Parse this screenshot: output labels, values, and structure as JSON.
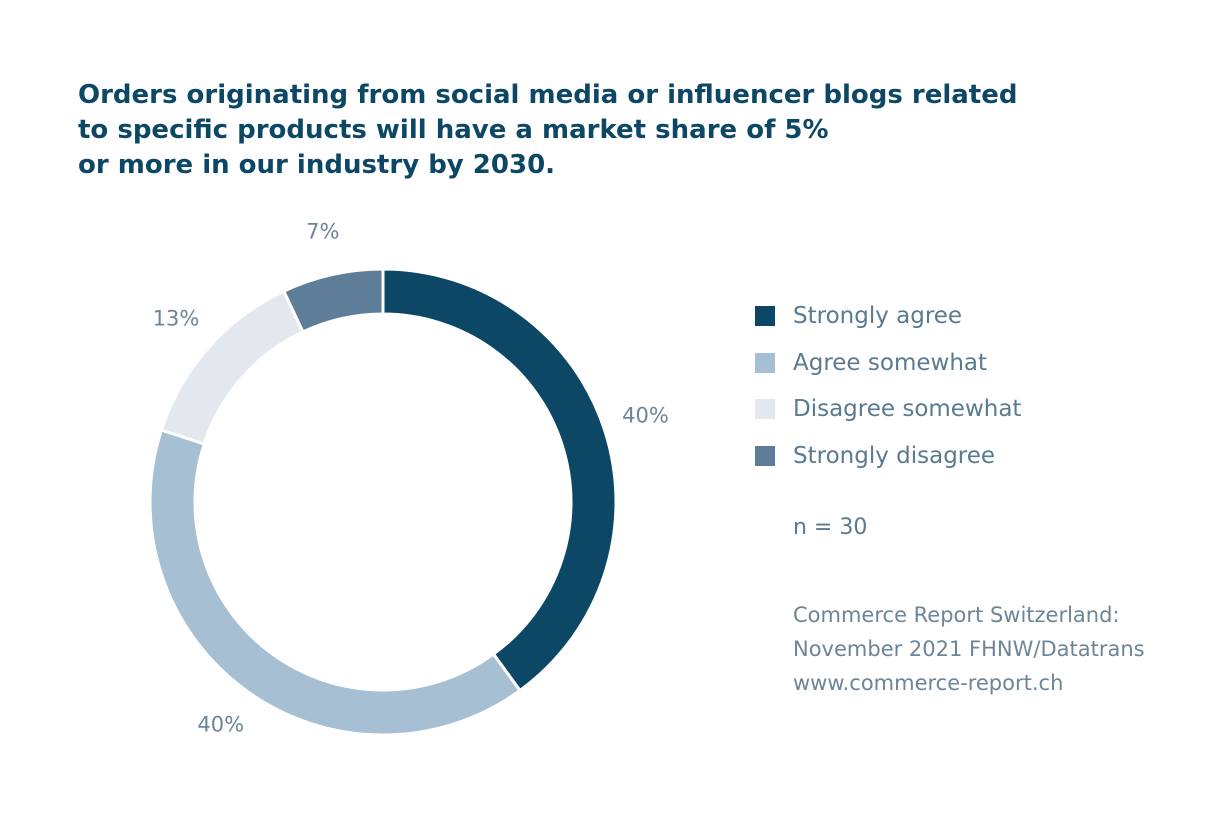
{
  "title_lines": [
    "Orders originating from social media or influencer blogs related",
    "to specific products will have a market share of 5%",
    "or more in our industry by 2030."
  ],
  "chart_data": {
    "type": "pie",
    "title": "Orders originating from social media or influencer blogs related to specific products will have a market share of 5% or more in our industry by 2030.",
    "categories": [
      "Strongly agree",
      "Agree somewhat",
      "Disagree somewhat",
      "Strongly disagree"
    ],
    "values": [
      40,
      40,
      13,
      7
    ],
    "data_labels": [
      "40%",
      "40%",
      "13%",
      "7%"
    ],
    "colors": [
      "#0d4766",
      "#a6bfd3",
      "#e3e8ef",
      "#5d7d99"
    ],
    "donut": true,
    "legend_position": "right"
  },
  "legend": {
    "items": [
      {
        "label": "Strongly agree",
        "color": "#0d4766"
      },
      {
        "label": "Agree somewhat",
        "color": "#a6bfd3"
      },
      {
        "label": "Disagree somewhat",
        "color": "#e3e8ef"
      },
      {
        "label": "Strongly disagree",
        "color": "#5d7d99"
      }
    ]
  },
  "note": "n = 30",
  "source_lines": [
    "Commerce Report Switzerland:",
    "November 2021 FHNW/Datatrans",
    "www.commerce-report.ch"
  ]
}
